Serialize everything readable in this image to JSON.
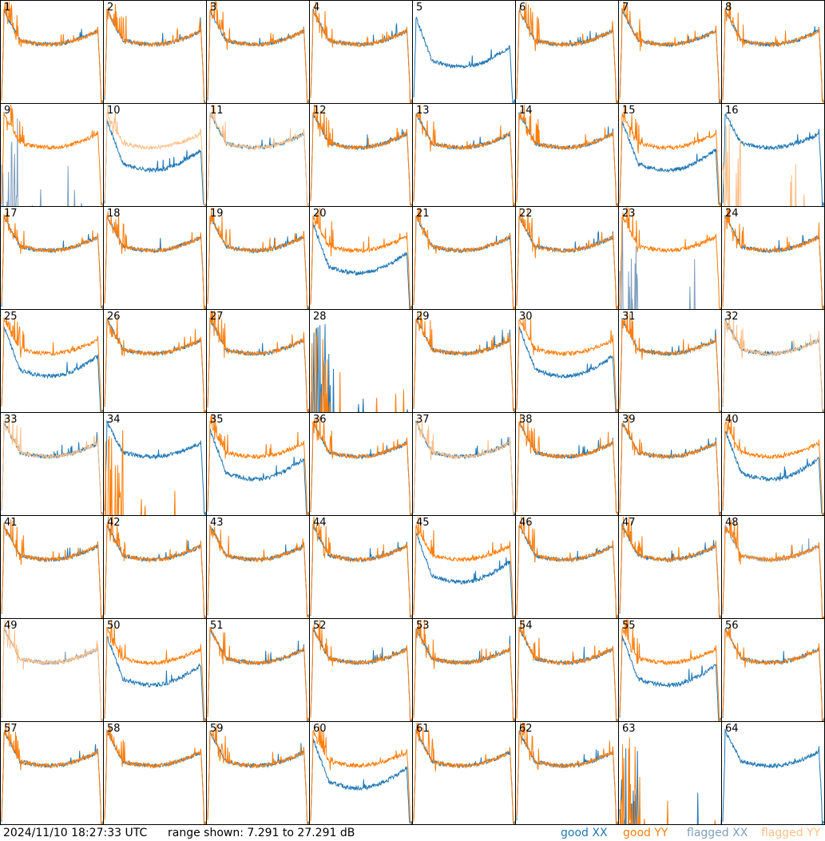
{
  "footer": {
    "timestamp": "2024/11/10 18:27:33 UTC",
    "range_text": "range shown: 7.291 to 27.291 dB",
    "legend": {
      "good_xx": "good XX",
      "good_yy": "good YY",
      "flagged_xx": "flagged XX",
      "flagged_yy": "flagged YY"
    }
  },
  "colors": {
    "good_xx": "#1f77b4",
    "good_yy": "#ff7f0e",
    "flagged_xx": "#7f9fbf",
    "flagged_yy": "#ffbf87"
  },
  "chart_data": {
    "type": "line",
    "grid_layout": "8x8 small multiples",
    "ylim_db": [
      7.291,
      27.291
    ],
    "panels": [
      {
        "id": "1",
        "xx": "good",
        "yy": "good"
      },
      {
        "id": "2",
        "xx": "good",
        "yy": "good"
      },
      {
        "id": "3",
        "xx": "good",
        "yy": "good"
      },
      {
        "id": "4",
        "xx": "good",
        "yy": "good"
      },
      {
        "id": "5",
        "xx": "good",
        "yy": "none"
      },
      {
        "id": "6",
        "xx": "good",
        "yy": "good"
      },
      {
        "id": "7",
        "xx": "good",
        "yy": "good"
      },
      {
        "id": "8",
        "xx": "good",
        "yy": "good"
      },
      {
        "id": "9",
        "xx": "flagged",
        "yy": "good"
      },
      {
        "id": "10",
        "xx": "good",
        "yy": "flagged"
      },
      {
        "id": "11",
        "xx": "good",
        "yy": "flagged"
      },
      {
        "id": "12",
        "xx": "good",
        "yy": "good"
      },
      {
        "id": "13",
        "xx": "good",
        "yy": "good"
      },
      {
        "id": "14",
        "xx": "good",
        "yy": "good"
      },
      {
        "id": "15",
        "xx": "good",
        "yy": "good"
      },
      {
        "id": "16",
        "xx": "good",
        "yy": "flagged"
      },
      {
        "id": "17",
        "xx": "good",
        "yy": "good"
      },
      {
        "id": "18",
        "xx": "good",
        "yy": "good"
      },
      {
        "id": "19",
        "xx": "good",
        "yy": "good"
      },
      {
        "id": "20",
        "xx": "good",
        "yy": "good"
      },
      {
        "id": "21",
        "xx": "good",
        "yy": "good"
      },
      {
        "id": "22",
        "xx": "good",
        "yy": "good"
      },
      {
        "id": "23",
        "xx": "flagged",
        "yy": "good"
      },
      {
        "id": "24",
        "xx": "good",
        "yy": "good"
      },
      {
        "id": "25",
        "xx": "good",
        "yy": "good"
      },
      {
        "id": "26",
        "xx": "good",
        "yy": "good"
      },
      {
        "id": "27",
        "xx": "good",
        "yy": "good"
      },
      {
        "id": "28",
        "xx": "good",
        "yy": "good"
      },
      {
        "id": "29",
        "xx": "good",
        "yy": "good"
      },
      {
        "id": "30",
        "xx": "good",
        "yy": "good"
      },
      {
        "id": "31",
        "xx": "good",
        "yy": "good"
      },
      {
        "id": "32",
        "xx": "good",
        "yy": "flagged"
      },
      {
        "id": "33",
        "xx": "good",
        "yy": "flagged"
      },
      {
        "id": "34",
        "xx": "good",
        "yy": "good"
      },
      {
        "id": "35",
        "xx": "good",
        "yy": "good"
      },
      {
        "id": "36",
        "xx": "good",
        "yy": "good"
      },
      {
        "id": "37",
        "xx": "good",
        "yy": "flagged"
      },
      {
        "id": "38",
        "xx": "good",
        "yy": "good"
      },
      {
        "id": "39",
        "xx": "good",
        "yy": "good"
      },
      {
        "id": "40",
        "xx": "good",
        "yy": "good"
      },
      {
        "id": "41",
        "xx": "good",
        "yy": "good"
      },
      {
        "id": "42",
        "xx": "good",
        "yy": "good"
      },
      {
        "id": "43",
        "xx": "good",
        "yy": "good"
      },
      {
        "id": "44",
        "xx": "good",
        "yy": "good"
      },
      {
        "id": "45",
        "xx": "good",
        "yy": "good"
      },
      {
        "id": "46",
        "xx": "good",
        "yy": "good"
      },
      {
        "id": "47",
        "xx": "good",
        "yy": "good"
      },
      {
        "id": "48",
        "xx": "flagged",
        "yy": "good"
      },
      {
        "id": "49",
        "xx": "flagged",
        "yy": "flagged"
      },
      {
        "id": "50",
        "xx": "good",
        "yy": "good"
      },
      {
        "id": "51",
        "xx": "good",
        "yy": "good"
      },
      {
        "id": "52",
        "xx": "good",
        "yy": "good"
      },
      {
        "id": "53",
        "xx": "good",
        "yy": "good"
      },
      {
        "id": "54",
        "xx": "good",
        "yy": "good"
      },
      {
        "id": "55",
        "xx": "good",
        "yy": "good"
      },
      {
        "id": "56",
        "xx": "good",
        "yy": "good"
      },
      {
        "id": "57",
        "xx": "good",
        "yy": "good"
      },
      {
        "id": "58",
        "xx": "good",
        "yy": "good"
      },
      {
        "id": "59",
        "xx": "good",
        "yy": "good"
      },
      {
        "id": "60",
        "xx": "good",
        "yy": "good"
      },
      {
        "id": "61",
        "xx": "good",
        "yy": "good"
      },
      {
        "id": "62",
        "xx": "good",
        "yy": "good"
      },
      {
        "id": "63",
        "xx": "good",
        "yy": "good"
      },
      {
        "id": "64",
        "xx": "good",
        "yy": "none"
      }
    ]
  }
}
